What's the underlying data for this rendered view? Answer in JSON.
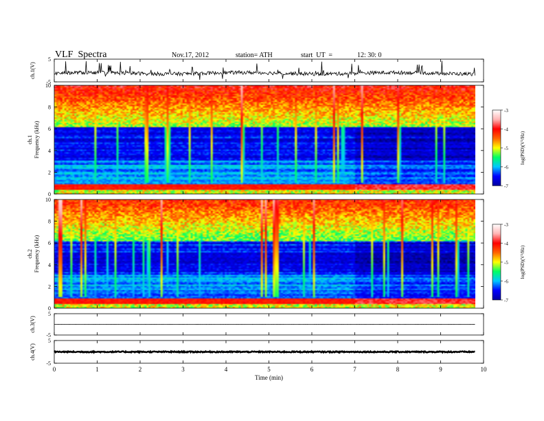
{
  "header": {
    "title": "VLF  Spectra",
    "date": "Nov.17, 2012",
    "station": "station= ATH",
    "start_label": "start  UT  =",
    "start_time": "12: 30: 0"
  },
  "colors": {
    "background": "#ffffff",
    "axes": "#000000",
    "colormap": [
      "#000000",
      "#0000a0",
      "#0000ff",
      "#00c8ff",
      "#00ff64",
      "#ffff00",
      "#ff6400",
      "#ff0000",
      "#ffb4b4",
      "#ffffff"
    ]
  },
  "chart_data": [
    {
      "type": "line",
      "panel": "ch1-waveform",
      "ylabel": "ch.1(V)",
      "ylim": [
        -5,
        5
      ],
      "yticks": [
        "5",
        "-5"
      ],
      "x_range_min": [
        0,
        9.8
      ],
      "baseline_v": -1.2,
      "description": "continuous noisy waveform with frequent spikes"
    },
    {
      "type": "heatmap",
      "panel": "ch1-spectrogram",
      "ylabel": "ch.1\nFrequency  (kHz)",
      "ylim": [
        0,
        10
      ],
      "yticks": [
        "0",
        "2",
        "4",
        "6",
        "8",
        "10"
      ],
      "x_range_min": [
        0,
        9.8
      ],
      "colorbar": {
        "label": "log(PSD)(V²/Hz)",
        "range": [
          -7,
          -3
        ],
        "ticks": [
          "-3",
          "-4",
          "-5",
          "-6",
          "-7"
        ]
      }
    },
    {
      "type": "heatmap",
      "panel": "ch2-spectrogram",
      "ylabel": "ch.2\nFrequency  (kHz)",
      "ylim": [
        0,
        10
      ],
      "yticks": [
        "0",
        "2",
        "4",
        "6",
        "8",
        "10"
      ],
      "x_range_min": [
        0,
        9.8
      ],
      "colorbar": {
        "label": "log(PSD)(V²/Hz)",
        "range": [
          -7,
          -3
        ],
        "ticks": [
          "-3",
          "-4",
          "-5",
          "-6",
          "-7"
        ]
      }
    },
    {
      "type": "line",
      "panel": "ch3-waveform",
      "ylabel": "ch.3(V)",
      "ylim": [
        -5,
        5
      ],
      "yticks": [
        "5",
        "-5"
      ],
      "x_range_min": [
        0,
        9.8
      ],
      "baseline_v": 0
    },
    {
      "type": "line",
      "panel": "ch4-waveform",
      "ylabel": "ch.4(V)",
      "ylim": [
        -5,
        5
      ],
      "yticks": [
        "5",
        "-5"
      ],
      "x_range_min": [
        0,
        9.8
      ],
      "baseline_v": 0,
      "description": "thick flat trace"
    },
    {
      "type": "axis",
      "xlabel": "Time  (min)",
      "xlim": [
        0,
        10
      ],
      "xticks": [
        "0",
        "1",
        "2",
        "3",
        "4",
        "5",
        "6",
        "7",
        "8",
        "9",
        "10"
      ]
    }
  ]
}
